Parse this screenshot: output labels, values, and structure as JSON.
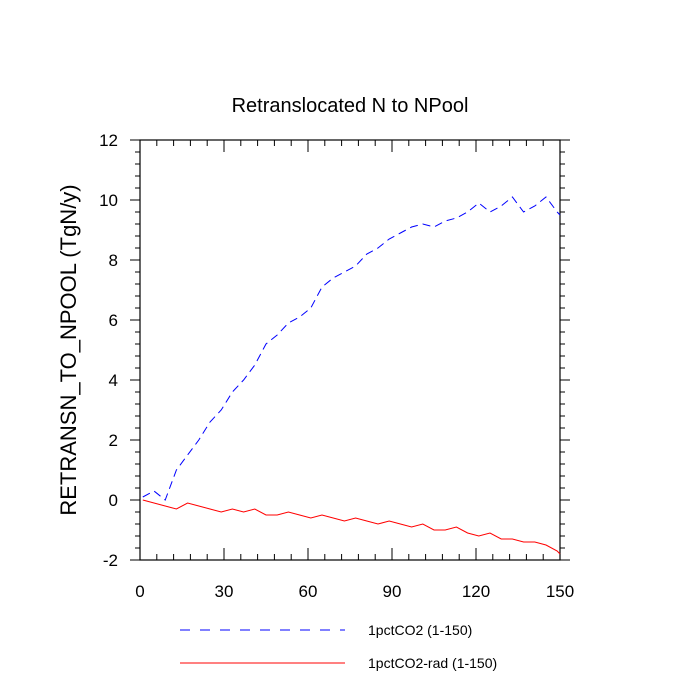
{
  "chart_data": {
    "type": "line",
    "title": "Retranslocated N to NPool",
    "ylabel": "RETRANSN_TO_NPOOL  (TgN/y)",
    "xlabel": "",
    "xlim": [
      0,
      150
    ],
    "ylim": [
      -2,
      12
    ],
    "xticks": [
      0,
      30,
      60,
      90,
      120,
      150
    ],
    "yticks": [
      -2,
      0,
      2,
      4,
      6,
      8,
      10,
      12
    ],
    "grid": false,
    "legend_position": "bottom",
    "series": [
      {
        "name": "1pctCO2 (1-150)",
        "color": "#0000ff",
        "dash": "dashed",
        "x": [
          1,
          5,
          9,
          13,
          17,
          21,
          25,
          29,
          33,
          37,
          41,
          45,
          49,
          53,
          57,
          61,
          65,
          69,
          73,
          77,
          81,
          85,
          89,
          93,
          97,
          101,
          105,
          109,
          113,
          117,
          121,
          125,
          129,
          133,
          137,
          141,
          145,
          149,
          150
        ],
        "y": [
          0.1,
          0.3,
          0.0,
          1.0,
          1.5,
          2.0,
          2.6,
          3.0,
          3.6,
          4.0,
          4.5,
          5.2,
          5.5,
          5.9,
          6.1,
          6.4,
          7.1,
          7.4,
          7.6,
          7.8,
          8.2,
          8.4,
          8.7,
          8.9,
          9.1,
          9.2,
          9.1,
          9.3,
          9.4,
          9.6,
          9.9,
          9.6,
          9.8,
          10.1,
          9.6,
          9.8,
          10.1,
          9.6,
          9.5
        ]
      },
      {
        "name": "1pctCO2-rad (1-150)",
        "color": "#ff0000",
        "dash": "solid",
        "x": [
          1,
          5,
          9,
          13,
          17,
          21,
          25,
          29,
          33,
          37,
          41,
          45,
          49,
          53,
          57,
          61,
          65,
          69,
          73,
          77,
          81,
          85,
          89,
          93,
          97,
          101,
          105,
          109,
          113,
          117,
          121,
          125,
          129,
          133,
          137,
          141,
          145,
          149,
          150
        ],
        "y": [
          0.0,
          -0.1,
          -0.2,
          -0.3,
          -0.1,
          -0.2,
          -0.3,
          -0.4,
          -0.3,
          -0.4,
          -0.3,
          -0.5,
          -0.5,
          -0.4,
          -0.5,
          -0.6,
          -0.5,
          -0.6,
          -0.7,
          -0.6,
          -0.7,
          -0.8,
          -0.7,
          -0.8,
          -0.9,
          -0.8,
          -1.0,
          -1.0,
          -0.9,
          -1.1,
          -1.2,
          -1.1,
          -1.3,
          -1.3,
          -1.4,
          -1.4,
          -1.5,
          -1.7,
          -1.8
        ]
      }
    ]
  }
}
